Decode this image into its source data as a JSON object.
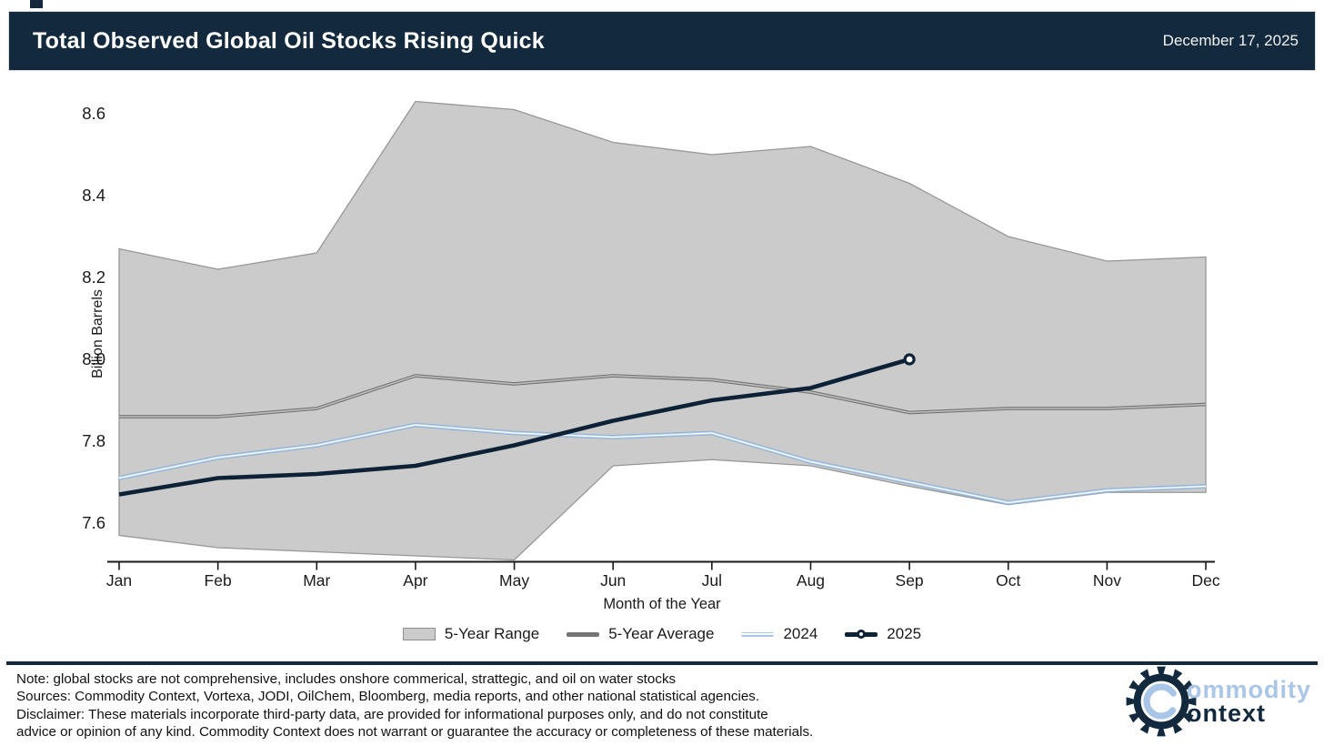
{
  "header": {
    "title": "Total Observed Global Oil Stocks Rising Quick",
    "date": "December 17, 2025"
  },
  "chart_data": {
    "type": "area+line",
    "categories": [
      "Jan",
      "Feb",
      "Mar",
      "Apr",
      "May",
      "Jun",
      "Jul",
      "Aug",
      "Sep",
      "Oct",
      "Nov",
      "Dec"
    ],
    "series": [
      {
        "name": "5-Year Range",
        "type": "band",
        "upper": [
          8.27,
          8.22,
          8.26,
          8.63,
          8.61,
          8.53,
          8.5,
          8.52,
          8.43,
          8.3,
          8.24,
          8.25
        ],
        "lower": [
          7.57,
          7.54,
          7.53,
          7.52,
          7.51,
          7.74,
          7.755,
          7.74,
          7.69,
          7.645,
          7.675,
          7.675
        ]
      },
      {
        "name": "5-Year Average",
        "type": "line",
        "values": [
          7.86,
          7.86,
          7.88,
          7.96,
          7.94,
          7.96,
          7.95,
          7.92,
          7.87,
          7.88,
          7.88,
          7.89
        ]
      },
      {
        "name": "2024",
        "type": "line",
        "values": [
          7.71,
          7.76,
          7.79,
          7.84,
          7.82,
          7.81,
          7.82,
          7.75,
          7.7,
          7.65,
          7.68,
          7.69
        ]
      },
      {
        "name": "2025",
        "type": "line",
        "marker_end": true,
        "values": [
          7.67,
          7.71,
          7.72,
          7.74,
          7.79,
          7.85,
          7.9,
          7.93,
          8.0
        ]
      }
    ],
    "xlabel": "Month of the Year",
    "ylabel": "Billion Barrels",
    "yticks": [
      7.6,
      7.8,
      8.0,
      8.2,
      8.4,
      8.6
    ],
    "ylim": [
      7.45,
      8.72
    ],
    "legend_position": "bottom-center",
    "grid": false
  },
  "legend": {
    "items": [
      {
        "label": "5-Year Range"
      },
      {
        "label": "5-Year Average"
      },
      {
        "label": "2024"
      },
      {
        "label": "2025"
      }
    ]
  },
  "colors": {
    "accent_navy": "#132a3e",
    "range_fill": "#cbcbcb",
    "range_edge": "#979797",
    "avg_line": "#757575",
    "avg_core": "#bdbdbd",
    "y2024_edge": "#8fb0d2",
    "y2024_mid": "#aecdf0",
    "y2024_core": "#ffffff",
    "y2025_line": "#0d2236",
    "axis": "#1a1a1a"
  },
  "footer": {
    "lines": [
      "Note: global stocks are not comprehensive, includes onshore commerical, strattegic, and oil on water stocks",
      "Sources: Commodity Context, Vortexa, JODI, OilChem, Bloomberg, media reports, and other national statistical agencies.",
      "Disclaimer: These materials incorporate third-party data, are provided for informational purposes only, and do not constitute",
      "advice or opinion of any kind. Commodity Context does not warrant or guarantee the accuracy or completeness of these materials."
    ],
    "logo": {
      "line1": "ommodity",
      "line2": "ontext"
    }
  }
}
